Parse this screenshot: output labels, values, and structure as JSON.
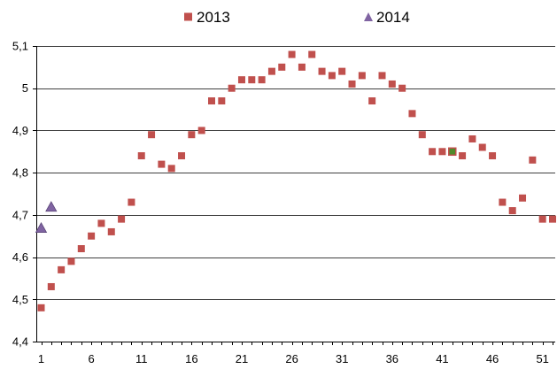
{
  "colors": {
    "series_2013": "#c0504d",
    "series_2014": "#8064a2",
    "highlight": "#4f8a2a",
    "grid": "#000000",
    "axis": "#000000"
  },
  "chart_data": {
    "type": "scatter",
    "title": "",
    "xlabel": "",
    "ylabel": "",
    "xlim": [
      1,
      52
    ],
    "ylim": [
      4.4,
      5.1
    ],
    "grid": true,
    "legend_position": "top-center",
    "x_ticks": [
      {
        "value": 1,
        "label": "1"
      },
      {
        "value": 6,
        "label": "6"
      },
      {
        "value": 11,
        "label": "11"
      },
      {
        "value": 16,
        "label": "16"
      },
      {
        "value": 21,
        "label": "21"
      },
      {
        "value": 26,
        "label": "26"
      },
      {
        "value": 31,
        "label": "31"
      },
      {
        "value": 36,
        "label": "36"
      },
      {
        "value": 41,
        "label": "41"
      },
      {
        "value": 46,
        "label": "46"
      },
      {
        "value": 51,
        "label": "51"
      }
    ],
    "y_ticks": [
      {
        "value": 4.4,
        "label": "4,4"
      },
      {
        "value": 4.5,
        "label": "4,5"
      },
      {
        "value": 4.6,
        "label": "4,6"
      },
      {
        "value": 4.7,
        "label": "4,7"
      },
      {
        "value": 4.8,
        "label": "4,8"
      },
      {
        "value": 4.9,
        "label": "4,9"
      },
      {
        "value": 5.0,
        "label": "5"
      },
      {
        "value": 5.1,
        "label": "5,1"
      }
    ],
    "series": [
      {
        "name": "2013",
        "marker": "square",
        "x": [
          1,
          2,
          3,
          4,
          5,
          6,
          7,
          8,
          9,
          10,
          11,
          12,
          13,
          14,
          15,
          16,
          17,
          18,
          19,
          20,
          21,
          22,
          23,
          24,
          25,
          26,
          27,
          28,
          29,
          30,
          31,
          32,
          33,
          34,
          35,
          36,
          37,
          38,
          39,
          40,
          41,
          42,
          43,
          44,
          45,
          46,
          47,
          48,
          49,
          50,
          51,
          52
        ],
        "y": [
          4.48,
          4.53,
          4.57,
          4.59,
          4.62,
          4.65,
          4.68,
          4.66,
          4.69,
          4.73,
          4.84,
          4.89,
          4.82,
          4.81,
          4.84,
          4.89,
          4.9,
          4.97,
          4.97,
          5.0,
          5.02,
          5.02,
          5.02,
          5.04,
          5.05,
          5.08,
          5.05,
          5.08,
          5.04,
          5.03,
          5.04,
          5.01,
          5.03,
          4.97,
          5.03,
          5.01,
          5.0,
          4.94,
          4.89,
          4.85,
          4.85,
          4.85,
          4.84,
          4.88,
          4.86,
          4.84,
          4.73,
          4.71,
          4.74,
          4.83,
          4.69,
          4.69
        ]
      },
      {
        "name": "2014",
        "marker": "triangle",
        "x": [
          1,
          2
        ],
        "y": [
          4.67,
          4.72
        ]
      }
    ],
    "highlighted_point": {
      "series": "2013",
      "x": 42,
      "y": 4.85
    }
  }
}
